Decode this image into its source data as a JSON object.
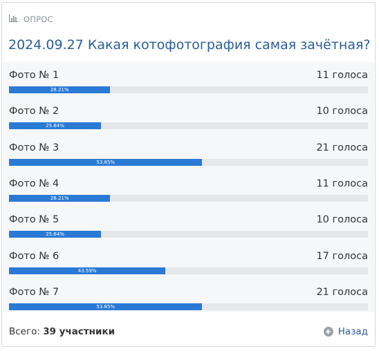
{
  "poll": {
    "header_label": "ОПРОС",
    "title": "2024.09.27 Какая котофотография самая зачётная?",
    "accent_color": "#2a7ad5",
    "options": [
      {
        "label": "Фото № 1",
        "votes": "11 голоса",
        "percent_label": "28.21%",
        "percent": 28.21
      },
      {
        "label": "Фото № 2",
        "votes": "10 голоса",
        "percent_label": "25.64%",
        "percent": 25.64
      },
      {
        "label": "Фото № 3",
        "votes": "21 голоса",
        "percent_label": "53.85%",
        "percent": 53.85
      },
      {
        "label": "Фото № 4",
        "votes": "11 голоса",
        "percent_label": "28.21%",
        "percent": 28.21
      },
      {
        "label": "Фото № 5",
        "votes": "10 голоса",
        "percent_label": "25.64%",
        "percent": 25.64
      },
      {
        "label": "Фото № 6",
        "votes": "17 голоса",
        "percent_label": "43.59%",
        "percent": 43.59
      },
      {
        "label": "Фото № 7",
        "votes": "21 голоса",
        "percent_label": "53.85%",
        "percent": 53.85
      }
    ],
    "footer": {
      "total_prefix": "Всего:",
      "total_value": "39 участники",
      "back_label": "Назад"
    },
    "icons": {
      "header": "bar-chart-icon",
      "back": "arrow-left-circle-icon"
    }
  }
}
